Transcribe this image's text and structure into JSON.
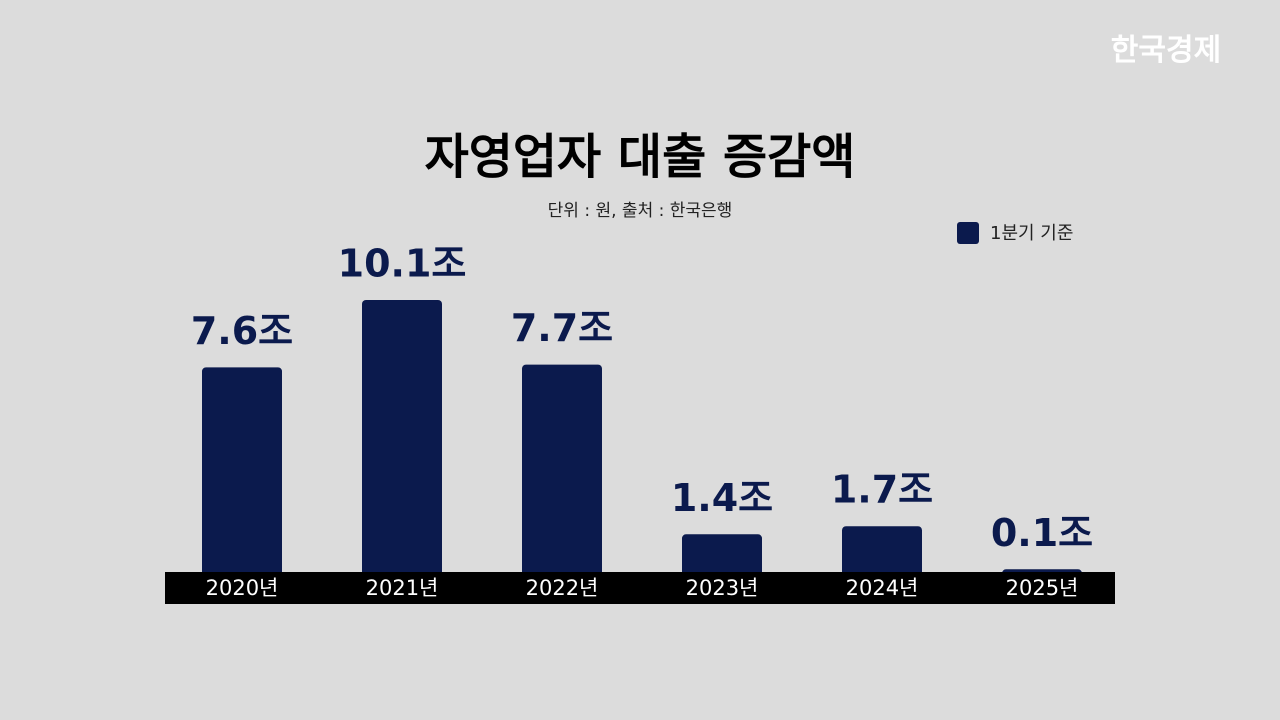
{
  "logo": "한국경제",
  "chart_data": {
    "type": "bar",
    "title": "자영업자 대출 증감액",
    "subtitle": "단위 : 원, 출처 : 한국은행",
    "categories": [
      "2020년",
      "2021년",
      "2022년",
      "2023년",
      "2024년",
      "2025년"
    ],
    "series": [
      {
        "name": "1분기 기준",
        "color": "#0b1a4d",
        "values": [
          7.6,
          10.1,
          7.7,
          1.4,
          1.7,
          0.1
        ],
        "value_labels": [
          "7.6조",
          "10.1조",
          "7.7조",
          "1.4조",
          "1.7조",
          "0.1조"
        ]
      }
    ]
  }
}
